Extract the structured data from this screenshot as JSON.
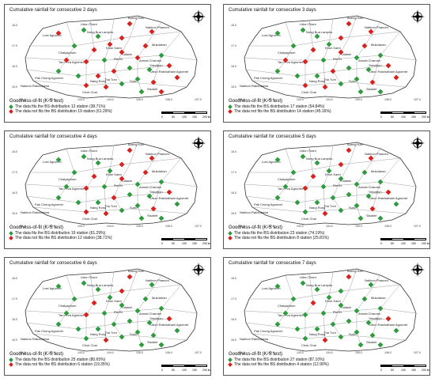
{
  "panels": [
    {
      "title": "Cumulative rainfall for consecutive 2 days",
      "fit": "The data fits the BS distribution 12 station (38.71%)",
      "notfit": "The data not fits the BS distribution 19 station (61.29%)",
      "greens": 12,
      "reds": 19
    },
    {
      "title": "Cumulative rainfall for consecutive 3 days",
      "fit": "The data fits the BS distribution 17 station (54.84%)",
      "notfit": "The data not fits the BS distribution 14 station (45.16%)",
      "greens": 17,
      "reds": 14
    },
    {
      "title": "Cumulative rainfall for consecutive 4 days",
      "fit": "The data fits the BS distribution 19 station (61.29%)",
      "notfit": "The data not fits the BS distribution 12 station (38.71%)",
      "greens": 19,
      "reds": 12
    },
    {
      "title": "Cumulative rainfall for consecutive 5 days",
      "fit": "The data fits the BS distribution 23 station (74.19%)",
      "notfit": "The data not fits the BS distribution 8 station (25.81%)",
      "greens": 23,
      "reds": 8
    },
    {
      "title": "Cumulative rainfall for consecutive 6 days",
      "fit": "The data fits the BS distribution 25 station (80.65%)",
      "notfit": "The data not fits the BS distribution 6 station (19.35%)",
      "greens": 25,
      "reds": 6
    },
    {
      "title": "Cumulative rainfall for consecutive 7 days",
      "fit": "The data fits the BS distribution 27 station (87.10%)",
      "notfit": "The data not fits the BS distribution 4 station (12.90%)",
      "greens": 27,
      "reds": 4
    }
  ],
  "legend_title": "Goodness-of-fit (K-S test)",
  "scale_labels": [
    "0",
    "50",
    "100",
    "150",
    "200 km"
  ],
  "lon_ticks": [
    "101.0",
    "102.0",
    "103.0",
    "104.0",
    "105.0",
    "106.0",
    "107.0"
  ],
  "lat_ticks": [
    "18.0",
    "17.0",
    "16.0",
    "15.0"
  ],
  "place_labels": [
    "Bueng Kan",
    "Nakhon Phanom",
    "Loei Agromet",
    "Udon Thani",
    "Nong Bua Lamphu",
    "Khon Kaen",
    "Mukdahan",
    "Chaiyaphum",
    "Tan Phra Agromet",
    "Roi Et",
    "Amnat Charoen",
    "Yasothon",
    "Ubon Ratchathani Agromet",
    "Nakhon Ratchasima",
    "Pak Chong Agromet",
    "Nang Rong",
    "Surin",
    "Sisaket",
    "Chok Chai",
    "Tha Tum",
    "Kalasin"
  ],
  "colors": {
    "fit": "#2e9b3f",
    "notfit": "#d8211d",
    "border": "#333333",
    "land": "#ffffff"
  }
}
